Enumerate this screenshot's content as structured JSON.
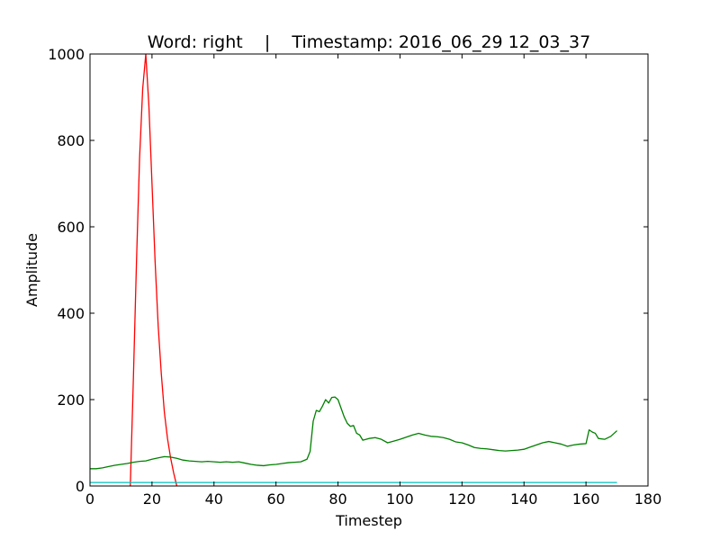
{
  "chart_data": {
    "type": "line",
    "title": "Word: right    |    Timestamp: 2016_06_29 12_03_37",
    "xlabel": "Timestep",
    "ylabel": "Amplitude",
    "xlim": [
      0,
      180
    ],
    "ylim": [
      0,
      1000
    ],
    "xticks": [
      0,
      20,
      40,
      60,
      80,
      100,
      120,
      140,
      160,
      180
    ],
    "yticks": [
      0,
      200,
      400,
      600,
      800,
      1000
    ],
    "grid": false,
    "legend": "none",
    "series": [
      {
        "color": "#ff0000",
        "x": [
          13,
          14,
          15,
          16,
          17,
          18,
          19,
          20,
          21,
          22,
          23,
          24,
          25,
          26,
          27,
          28
        ],
        "y": [
          0,
          250,
          520,
          760,
          920,
          1000,
          880,
          700,
          520,
          370,
          260,
          170,
          110,
          65,
          30,
          0
        ]
      },
      {
        "color": "#008000",
        "x": [
          0,
          2,
          4,
          6,
          8,
          10,
          12,
          14,
          16,
          18,
          20,
          22,
          24,
          26,
          28,
          30,
          32,
          34,
          36,
          38,
          40,
          42,
          44,
          46,
          48,
          50,
          52,
          54,
          56,
          58,
          60,
          62,
          64,
          66,
          68,
          70,
          71,
          72,
          73,
          74,
          75,
          76,
          77,
          78,
          79,
          80,
          81,
          82,
          83,
          84,
          85,
          86,
          87,
          88,
          90,
          92,
          94,
          96,
          98,
          100,
          102,
          104,
          106,
          108,
          110,
          112,
          114,
          116,
          118,
          120,
          122,
          124,
          126,
          128,
          130,
          132,
          134,
          136,
          138,
          140,
          142,
          144,
          146,
          148,
          150,
          152,
          154,
          156,
          158,
          160,
          161,
          162,
          163,
          164,
          166,
          168,
          170
        ],
        "y": [
          40,
          40,
          42,
          45,
          48,
          50,
          52,
          55,
          57,
          58,
          62,
          65,
          68,
          67,
          64,
          60,
          58,
          57,
          56,
          57,
          56,
          55,
          56,
          55,
          56,
          53,
          50,
          48,
          47,
          49,
          50,
          52,
          54,
          55,
          56,
          62,
          80,
          150,
          175,
          172,
          185,
          200,
          192,
          205,
          206,
          200,
          180,
          160,
          145,
          138,
          140,
          122,
          118,
          106,
          110,
          112,
          108,
          100,
          104,
          108,
          113,
          118,
          122,
          118,
          115,
          114,
          112,
          108,
          102,
          100,
          95,
          89,
          87,
          86,
          84,
          82,
          81,
          82,
          83,
          85,
          90,
          95,
          100,
          103,
          100,
          97,
          92,
          95,
          97,
          98,
          130,
          125,
          122,
          110,
          108,
          115,
          128
        ]
      },
      {
        "color": "#00bfbf",
        "x": [
          0,
          20,
          40,
          60,
          80,
          100,
          120,
          140,
          160,
          170
        ],
        "y": [
          8,
          8,
          8,
          8,
          8,
          8,
          8,
          8,
          8,
          8
        ]
      }
    ]
  }
}
